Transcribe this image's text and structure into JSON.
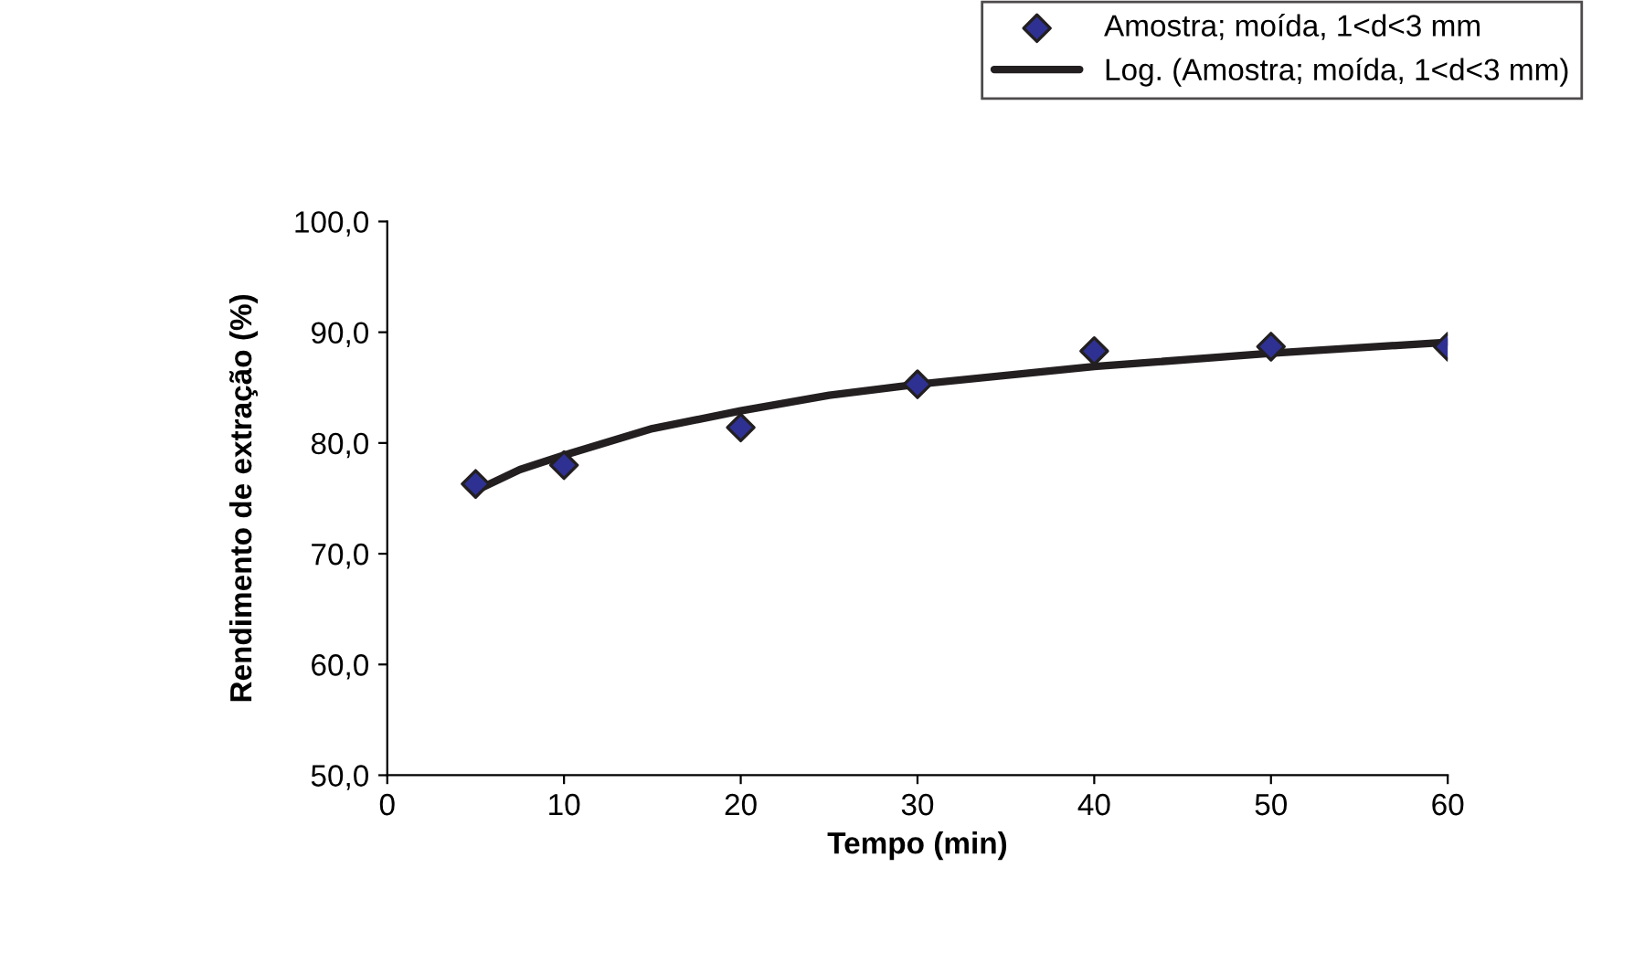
{
  "chart_data": {
    "type": "scatter",
    "xlabel": "Tempo (min)",
    "ylabel": "Rendimento de extração (%)",
    "xlim": [
      0,
      60
    ],
    "xticks": [
      0,
      10,
      20,
      30,
      40,
      50,
      60
    ],
    "ylim": [
      50,
      100
    ],
    "yticks": [
      {
        "value": 50,
        "label": "50,0"
      },
      {
        "value": 60,
        "label": "60,0"
      },
      {
        "value": 70,
        "label": "70,0"
      },
      {
        "value": 80,
        "label": "80,0"
      },
      {
        "value": 90,
        "label": "90,0"
      },
      {
        "value": 100,
        "label": "100,0"
      }
    ],
    "grid": false,
    "legend": "top right",
    "series": [
      {
        "name": "Amostra; moída, 1<d<3 mm",
        "marker": "diamond",
        "color": "#2e3192",
        "x": [
          5,
          10,
          20,
          30,
          40,
          50,
          60
        ],
        "values": [
          76.3,
          78.0,
          81.4,
          85.3,
          88.3,
          88.7,
          88.7
        ]
      },
      {
        "name": "Log. (Amostra; moída, 1<d<3 mm)",
        "type": "line",
        "marker": "none",
        "line_style": "solid",
        "color": "#231f20",
        "x": [
          5,
          7.5,
          10,
          15,
          20,
          25,
          30,
          40,
          50,
          60
        ],
        "values": [
          75.7,
          77.6,
          78.9,
          81.3,
          82.9,
          84.3,
          85.3,
          86.9,
          88.1,
          89.1
        ]
      }
    ]
  }
}
